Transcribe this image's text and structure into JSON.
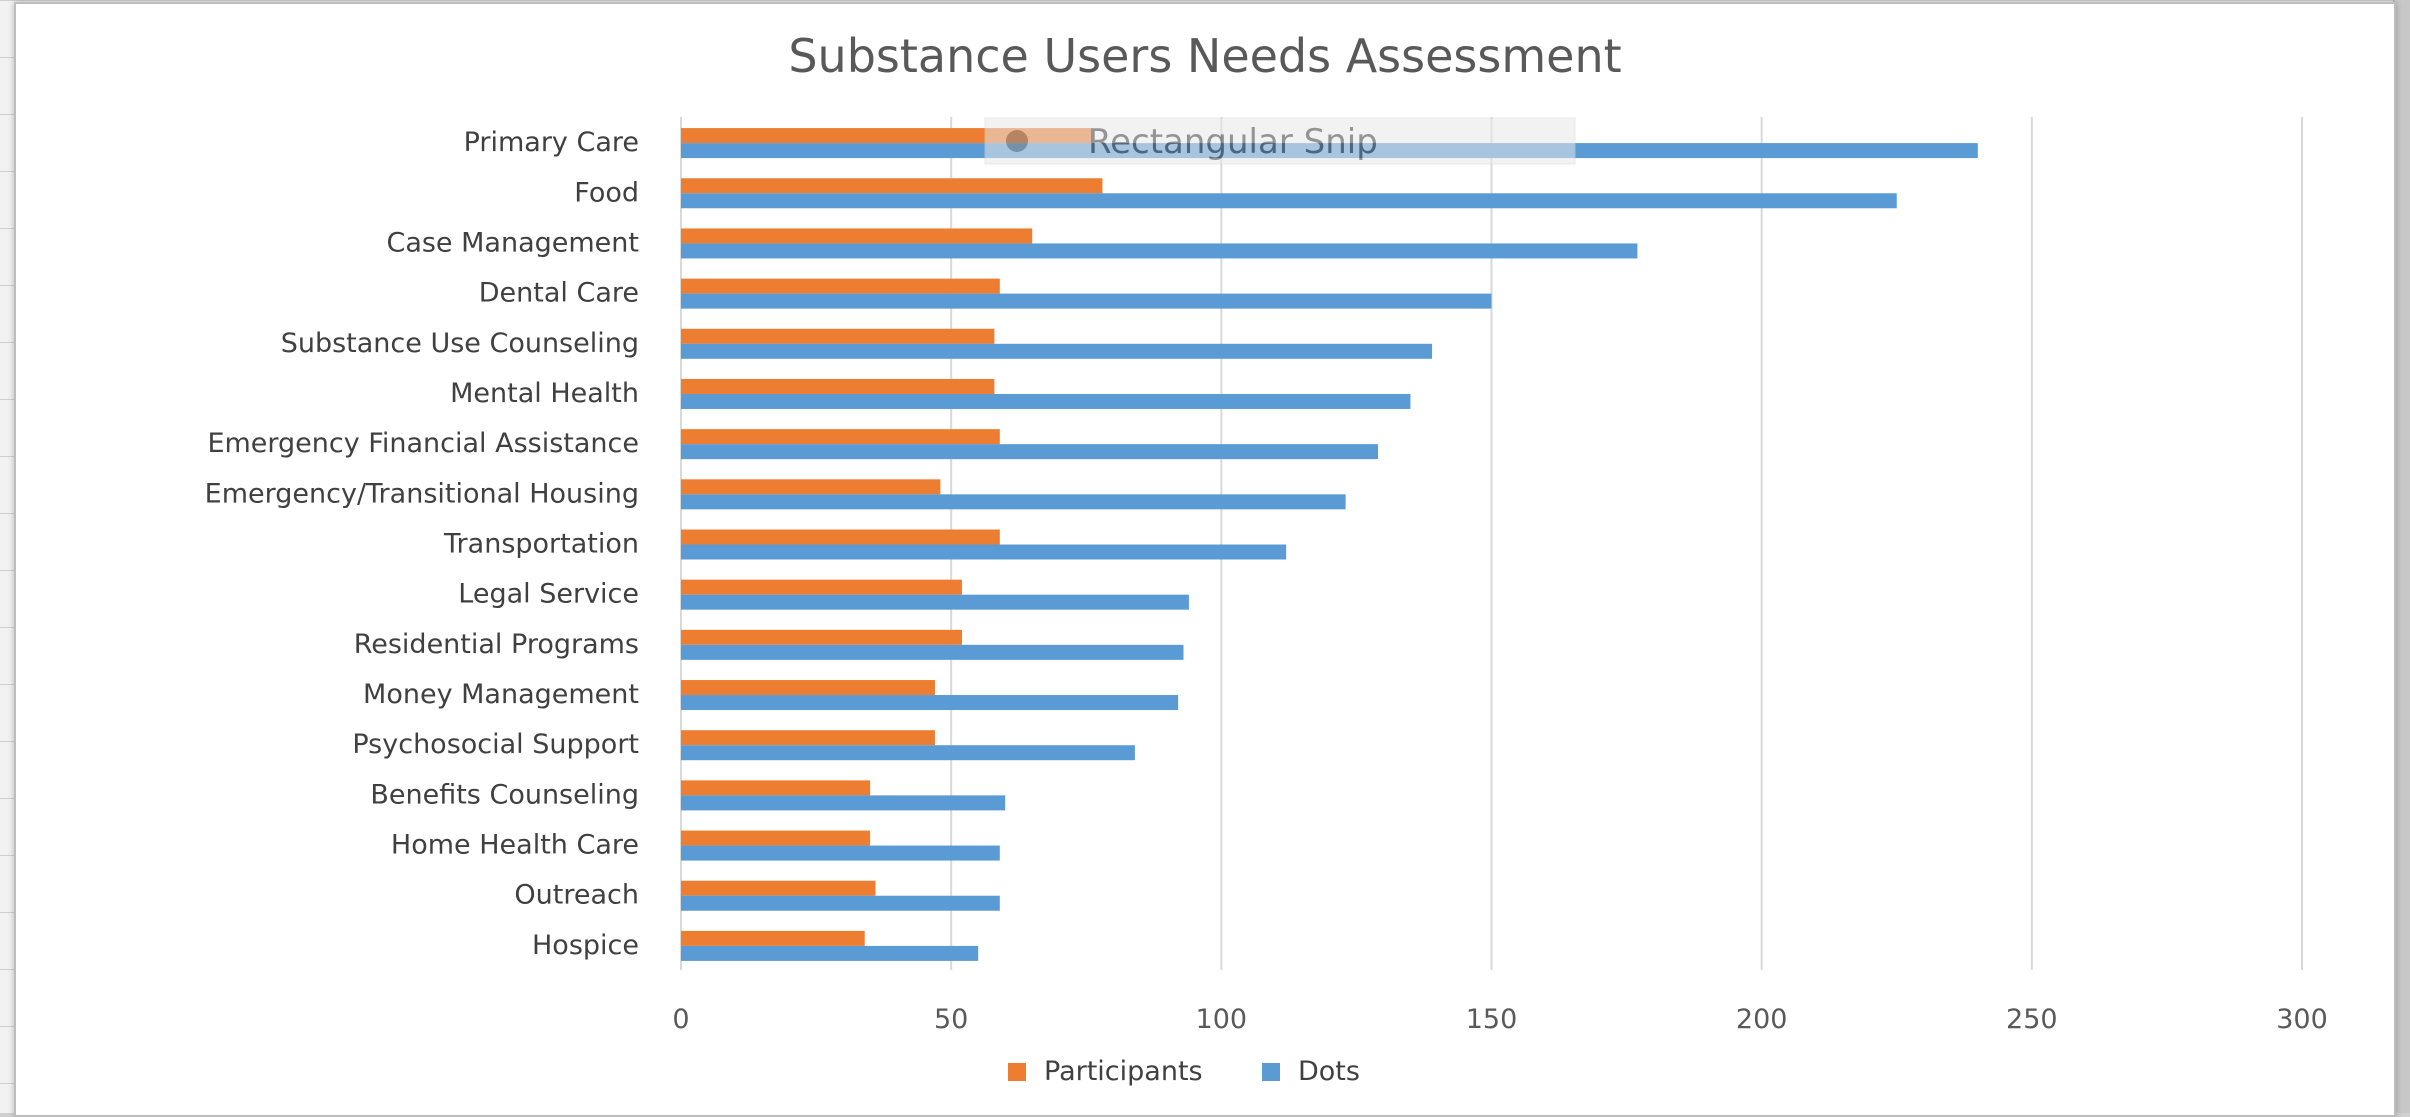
{
  "chart_data": {
    "type": "bar",
    "orientation": "horizontal",
    "title": "Substance Users Needs Assessment",
    "categories": [
      "Primary Care",
      "Food",
      "Case Management",
      "Dental Care",
      "Substance Use Counseling",
      "Mental Health",
      "Emergency Financial Assistance",
      "Emergency/Transitional Housing",
      "Transportation",
      "Legal Service",
      "Residential Programs",
      "Money Management",
      "Psychosocial Support",
      "Benefits Counseling",
      "Home Health Care",
      "Outreach",
      "Hospice"
    ],
    "series": [
      {
        "name": "Participants",
        "color": "#ED7D31",
        "values": [
          76,
          78,
          65,
          59,
          58,
          58,
          59,
          48,
          59,
          52,
          52,
          47,
          47,
          35,
          35,
          36,
          34
        ]
      },
      {
        "name": "Dots",
        "color": "#5B9BD5",
        "values": [
          240,
          225,
          177,
          150,
          139,
          135,
          129,
          123,
          112,
          94,
          93,
          92,
          84,
          60,
          59,
          59,
          55
        ]
      }
    ],
    "xlim": [
      0,
      300
    ],
    "xticks": [
      "0",
      "50",
      "100",
      "150",
      "200",
      "250",
      "300"
    ],
    "grid": true,
    "legend_position": "bottom"
  },
  "overlay": {
    "snip_label": "Rectangular Snip"
  }
}
